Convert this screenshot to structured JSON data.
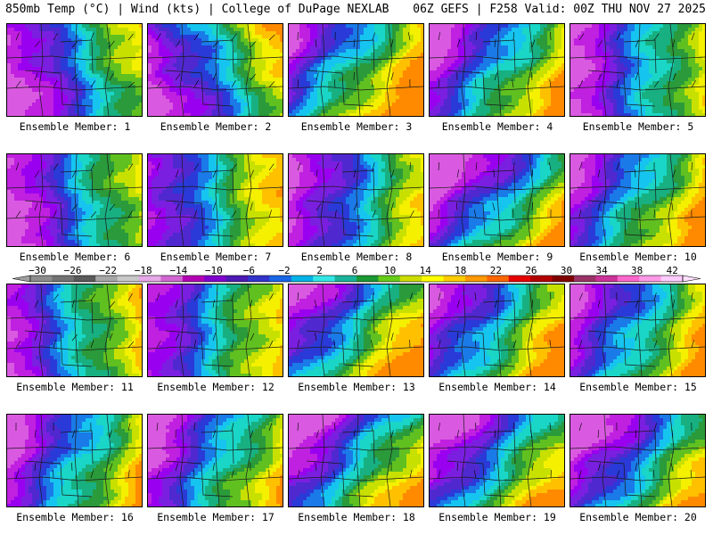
{
  "header": {
    "left": "850mb Temp (°C) | Wind (kts) | College of DuPage NEXLAB",
    "right": "06Z GEFS | F258 Valid: 00Z THU NOV 27 2025"
  },
  "member_prefix": "Ensemble Member:",
  "members": [
    {
      "num": "1",
      "row": 0,
      "col": 0,
      "axis": 0.55,
      "axisTilt": -0.5,
      "base": -4
    },
    {
      "num": "2",
      "row": 0,
      "col": 1,
      "axis": 0.55,
      "axisTilt": -0.55,
      "base": -2
    },
    {
      "num": "3",
      "row": 0,
      "col": 2,
      "axis": 0.5,
      "axisTilt": 0.3,
      "base": 5
    },
    {
      "num": "4",
      "row": 0,
      "col": 3,
      "axis": 0.55,
      "axisTilt": 0.25,
      "base": 2
    },
    {
      "num": "5",
      "row": 0,
      "col": 4,
      "axis": 0.6,
      "axisTilt": -0.2,
      "base": 0
    },
    {
      "num": "6",
      "row": 1,
      "col": 0,
      "axis": 0.6,
      "axisTilt": -0.4,
      "base": -1
    },
    {
      "num": "7",
      "row": 1,
      "col": 1,
      "axis": 0.3,
      "axisTilt": -0.3,
      "base": -8
    },
    {
      "num": "8",
      "row": 1,
      "col": 2,
      "axis": 0.5,
      "axisTilt": -0.1,
      "base": -4
    },
    {
      "num": "9",
      "row": 1,
      "col": 3,
      "axis": 0.6,
      "axisTilt": 0.4,
      "base": 0
    },
    {
      "num": "10",
      "row": 1,
      "col": 4,
      "axis": 0.55,
      "axisTilt": 0.2,
      "base": 4
    },
    {
      "num": "11",
      "row": 2,
      "col": 0,
      "axis": 0.35,
      "axisTilt": -0.3,
      "base": -7
    },
    {
      "num": "12",
      "row": 2,
      "col": 1,
      "axis": 0.3,
      "axisTilt": -0.2,
      "base": -9
    },
    {
      "num": "13",
      "row": 2,
      "col": 2,
      "axis": 0.5,
      "axisTilt": 0.3,
      "base": 2
    },
    {
      "num": "14",
      "row": 2,
      "col": 3,
      "axis": 0.55,
      "axisTilt": 0.2,
      "base": 3
    },
    {
      "num": "15",
      "row": 2,
      "col": 4,
      "axis": 0.7,
      "axisTilt": 0.1,
      "base": 8
    },
    {
      "num": "16",
      "row": 3,
      "col": 0,
      "axis": 0.5,
      "axisTilt": 0.1,
      "base": -2
    },
    {
      "num": "17",
      "row": 3,
      "col": 1,
      "axis": 0.45,
      "axisTilt": 0.1,
      "base": -4
    },
    {
      "num": "18",
      "row": 3,
      "col": 2,
      "axis": 0.6,
      "axisTilt": 0.3,
      "base": 3
    },
    {
      "num": "19",
      "row": 3,
      "col": 3,
      "axis": 0.55,
      "axisTilt": 0.3,
      "base": 0
    },
    {
      "num": "20",
      "row": 3,
      "col": 4,
      "axis": 0.6,
      "axisTilt": 0.3,
      "base": 0
    }
  ],
  "colorbar": {
    "ticks": [
      "-30",
      "-26",
      "-22",
      "-18",
      "-14",
      "-10",
      "-6",
      "-2",
      "2",
      "6",
      "10",
      "14",
      "18",
      "22",
      "26",
      "30",
      "34",
      "38",
      "42"
    ],
    "colors": [
      "#8c8c8c",
      "#737373",
      "#5a5a5a",
      "#a6a6a6",
      "#c8c8c8",
      "#e6a8e6",
      "#d166d1",
      "#b300b3",
      "#8000cc",
      "#4d1ab3",
      "#3333cc",
      "#1a66e6",
      "#00b3e6",
      "#33e6e6",
      "#19b399",
      "#1a9933",
      "#66cc1a",
      "#ccdd00",
      "#ffff00",
      "#ffcc00",
      "#ff9900",
      "#ff6600",
      "#e60000",
      "#b30000",
      "#800000",
      "#993366",
      "#cc3399",
      "#ff66cc",
      "#ff99e6",
      "#ffccff"
    ]
  },
  "temp_scale": [
    {
      "t": -24,
      "c": "#d95ae0"
    },
    {
      "t": -18,
      "c": "#c020e0"
    },
    {
      "t": -14,
      "c": "#9a00f0"
    },
    {
      "t": -11,
      "c": "#7a1fe0"
    },
    {
      "t": -8,
      "c": "#5028d0"
    },
    {
      "t": -5,
      "c": "#2a3ad8"
    },
    {
      "t": -2,
      "c": "#1a7ae8"
    },
    {
      "t": 1,
      "c": "#16c4f0"
    },
    {
      "t": 4,
      "c": "#1ad6c6"
    },
    {
      "t": 7,
      "c": "#18b080"
    },
    {
      "t": 10,
      "c": "#2a9a3a"
    },
    {
      "t": 13,
      "c": "#60c020"
    },
    {
      "t": 16,
      "c": "#c8e000"
    },
    {
      "t": 19,
      "c": "#f4f000"
    },
    {
      "t": 22,
      "c": "#ffc000"
    },
    {
      "t": 26,
      "c": "#ff8a00"
    }
  ]
}
